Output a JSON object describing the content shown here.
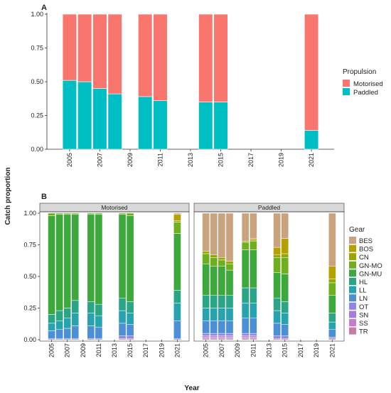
{
  "chart_data": [
    {
      "panel": "A",
      "type": "bar",
      "stacked": true,
      "x_tick_labels": [
        "2005",
        "2007",
        "2009",
        "2011",
        "2013",
        "2015",
        "2017",
        "2019",
        "2021"
      ],
      "xlim": [
        2003.5,
        2022.5
      ],
      "ylim": [
        0,
        1
      ],
      "y_tick_labels": [
        "0.00",
        "0.25",
        "0.50",
        "0.75",
        "1.00"
      ],
      "legend": {
        "title": "Propulsion",
        "position": "right"
      },
      "series": [
        {
          "name": "Motorised",
          "color": "#f8766d",
          "x": [
            2005,
            2006,
            2007,
            2008,
            2010,
            2011,
            2014,
            2015,
            2021
          ],
          "values": [
            0.49,
            0.5,
            0.55,
            0.59,
            0.61,
            0.64,
            0.65,
            0.65,
            0.86
          ]
        },
        {
          "name": "Paddled",
          "color": "#00bfc4",
          "x": [
            2005,
            2006,
            2007,
            2008,
            2010,
            2011,
            2014,
            2015,
            2021
          ],
          "values": [
            0.51,
            0.5,
            0.45,
            0.41,
            0.39,
            0.36,
            0.35,
            0.35,
            0.14
          ]
        }
      ]
    },
    {
      "panel": "B",
      "type": "bar",
      "stacked": true,
      "facets": [
        "Motorised",
        "Paddled"
      ],
      "x_tick_labels": [
        "2005",
        "2007",
        "2009",
        "2011",
        "2013",
        "2015",
        "2017",
        "2019",
        "2021"
      ],
      "xlim": [
        2003.5,
        2022.5
      ],
      "ylim": [
        0,
        1
      ],
      "y_tick_labels": [
        "0.00",
        "0.25",
        "0.50",
        "0.75",
        "1.00"
      ],
      "legend": {
        "title": "Gear",
        "position": "right"
      },
      "gear_colors": {
        "BES": "#c9a27e",
        "BOS": "#b5a000",
        "CN": "#96a800",
        "GN-MO": "#6fae1c",
        "GN-MU": "#3da83c",
        "HL": "#2aa585",
        "LL": "#27a3b0",
        "LN": "#4d8fd6",
        "OT": "#8f86e6",
        "SN": "#a47de0",
        "SS": "#c67bd0",
        "TR": "#c77aa8"
      },
      "series_order_bottom_to_top": [
        "TR",
        "SS",
        "SN",
        "OT",
        "LN",
        "LL",
        "HL",
        "GN-MU",
        "GN-MO",
        "CN",
        "BOS",
        "BES"
      ],
      "x": [
        2005,
        2006,
        2007,
        2008,
        2010,
        2011,
        2014,
        2015,
        2021
      ],
      "panels": [
        {
          "name": "Motorised",
          "bars": [
            {
              "x": 2005,
              "values": {
                "TR": 0.0,
                "SS": 0.0,
                "SN": 0.0,
                "OT": 0.01,
                "LN": 0.06,
                "LL": 0.06,
                "HL": 0.07,
                "GN-MU": 0.78,
                "GN-MO": 0.02,
                "CN": 0.0,
                "BOS": 0.0,
                "BES": 0.0
              }
            },
            {
              "x": 2006,
              "values": {
                "TR": 0.0,
                "SS": 0.0,
                "SN": 0.0,
                "OT": 0.01,
                "LN": 0.07,
                "LL": 0.07,
                "HL": 0.08,
                "GN-MU": 0.76,
                "GN-MO": 0.01,
                "CN": 0.0,
                "BOS": 0.0,
                "BES": 0.0
              }
            },
            {
              "x": 2007,
              "values": {
                "TR": 0.0,
                "SS": 0.0,
                "SN": 0.0,
                "OT": 0.01,
                "LN": 0.08,
                "LL": 0.08,
                "HL": 0.08,
                "GN-MU": 0.74,
                "GN-MO": 0.01,
                "CN": 0.0,
                "BOS": 0.0,
                "BES": 0.0
              }
            },
            {
              "x": 2008,
              "values": {
                "TR": 0.0,
                "SS": 0.0,
                "SN": 0.0,
                "OT": 0.01,
                "LN": 0.1,
                "LL": 0.1,
                "HL": 0.1,
                "GN-MU": 0.68,
                "GN-MO": 0.01,
                "CN": 0.0,
                "BOS": 0.0,
                "BES": 0.0
              }
            },
            {
              "x": 2010,
              "values": {
                "TR": 0.0,
                "SS": 0.0,
                "SN": 0.0,
                "OT": 0.01,
                "LN": 0.1,
                "LL": 0.1,
                "HL": 0.09,
                "GN-MU": 0.69,
                "GN-MO": 0.01,
                "CN": 0.0,
                "BOS": 0.0,
                "BES": 0.0
              }
            },
            {
              "x": 2011,
              "values": {
                "TR": 0.0,
                "SS": 0.0,
                "SN": 0.0,
                "OT": 0.01,
                "LN": 0.09,
                "LL": 0.09,
                "HL": 0.09,
                "GN-MU": 0.71,
                "GN-MO": 0.01,
                "CN": 0.0,
                "BOS": 0.0,
                "BES": 0.0
              }
            },
            {
              "x": 2014,
              "values": {
                "TR": 0.0,
                "SS": 0.01,
                "SN": 0.0,
                "OT": 0.02,
                "LN": 0.1,
                "LL": 0.1,
                "HL": 0.1,
                "GN-MU": 0.66,
                "GN-MO": 0.01,
                "CN": 0.0,
                "BOS": 0.0,
                "BES": 0.0
              }
            },
            {
              "x": 2015,
              "values": {
                "TR": 0.0,
                "SS": 0.01,
                "SN": 0.0,
                "OT": 0.02,
                "LN": 0.09,
                "LL": 0.09,
                "HL": 0.09,
                "GN-MU": 0.68,
                "GN-MO": 0.02,
                "CN": 0.0,
                "BOS": 0.0,
                "BES": 0.0
              }
            },
            {
              "x": 2021,
              "values": {
                "TR": 0.0,
                "SS": 0.0,
                "SN": 0.0,
                "OT": 0.01,
                "LN": 0.14,
                "LL": 0.14,
                "HL": 0.1,
                "GN-MU": 0.45,
                "GN-MO": 0.09,
                "CN": 0.01,
                "BOS": 0.05,
                "BES": 0.01
              }
            }
          ]
        },
        {
          "name": "Paddled",
          "bars": [
            {
              "x": 2005,
              "values": {
                "TR": 0.01,
                "SS": 0.01,
                "SN": 0.01,
                "OT": 0.02,
                "LN": 0.1,
                "LL": 0.1,
                "HL": 0.1,
                "GN-MU": 0.25,
                "GN-MO": 0.08,
                "CN": 0.02,
                "BOS": 0.0,
                "BES": 0.3
              }
            },
            {
              "x": 2006,
              "values": {
                "TR": 0.01,
                "SS": 0.01,
                "SN": 0.01,
                "OT": 0.02,
                "LN": 0.1,
                "LL": 0.1,
                "HL": 0.1,
                "GN-MU": 0.23,
                "GN-MO": 0.07,
                "CN": 0.02,
                "BOS": 0.0,
                "BES": 0.33
              }
            },
            {
              "x": 2007,
              "values": {
                "TR": 0.01,
                "SS": 0.01,
                "SN": 0.01,
                "OT": 0.02,
                "LN": 0.1,
                "LL": 0.1,
                "HL": 0.1,
                "GN-MU": 0.23,
                "GN-MO": 0.05,
                "CN": 0.02,
                "BOS": 0.0,
                "BES": 0.35
              }
            },
            {
              "x": 2008,
              "values": {
                "TR": 0.01,
                "SS": 0.01,
                "SN": 0.01,
                "OT": 0.02,
                "LN": 0.1,
                "LL": 0.1,
                "HL": 0.1,
                "GN-MU": 0.2,
                "GN-MO": 0.05,
                "CN": 0.02,
                "BOS": 0.0,
                "BES": 0.38
              }
            },
            {
              "x": 2010,
              "values": {
                "TR": 0.01,
                "SS": 0.01,
                "SN": 0.01,
                "OT": 0.02,
                "LN": 0.12,
                "LL": 0.12,
                "HL": 0.12,
                "GN-MU": 0.3,
                "GN-MO": 0.06,
                "CN": 0.01,
                "BOS": 0.0,
                "BES": 0.22
              }
            },
            {
              "x": 2011,
              "values": {
                "TR": 0.01,
                "SS": 0.01,
                "SN": 0.01,
                "OT": 0.02,
                "LN": 0.12,
                "LL": 0.12,
                "HL": 0.12,
                "GN-MU": 0.3,
                "GN-MO": 0.07,
                "CN": 0.01,
                "BOS": 0.01,
                "BES": 0.2
              }
            },
            {
              "x": 2014,
              "values": {
                "TR": 0.01,
                "SS": 0.0,
                "SN": 0.0,
                "OT": 0.02,
                "LN": 0.1,
                "LL": 0.1,
                "HL": 0.1,
                "GN-MU": 0.2,
                "GN-MO": 0.12,
                "CN": 0.02,
                "BOS": 0.06,
                "BES": 0.27
              }
            },
            {
              "x": 2015,
              "values": {
                "TR": 0.01,
                "SS": 0.0,
                "SN": 0.0,
                "OT": 0.02,
                "LN": 0.09,
                "LL": 0.09,
                "HL": 0.09,
                "GN-MU": 0.22,
                "GN-MO": 0.13,
                "CN": 0.03,
                "BOS": 0.12,
                "BES": 0.2
              }
            },
            {
              "x": 2021,
              "values": {
                "TR": 0.01,
                "SS": 0.0,
                "SN": 0.0,
                "OT": 0.01,
                "LN": 0.06,
                "LL": 0.06,
                "HL": 0.07,
                "GN-MU": 0.14,
                "GN-MO": 0.1,
                "CN": 0.03,
                "BOS": 0.1,
                "BES": 0.42
              }
            }
          ]
        }
      ]
    }
  ],
  "labels": {
    "panel_a": "A",
    "panel_b": "B",
    "y_axis_title": "Catch proportion",
    "x_axis_title": "Year"
  }
}
